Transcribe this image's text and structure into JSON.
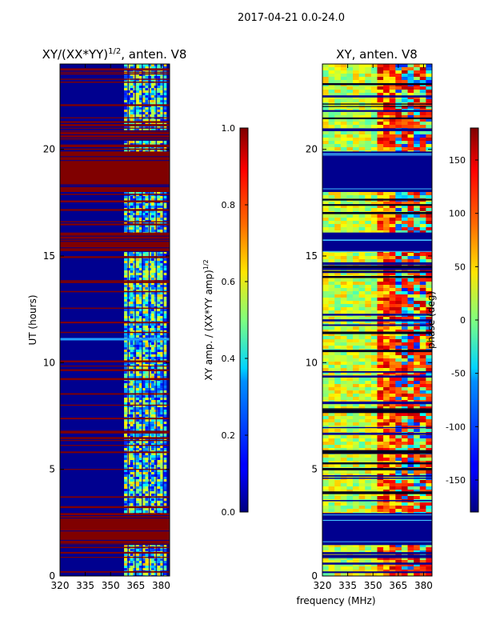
{
  "figure": {
    "suptitle": "2017-04-21 0.0-24.0",
    "xlabel": "frequency (MHz)"
  },
  "chart_data": [
    {
      "type": "heatmap",
      "title_main": "XY/(XX*YY)",
      "title_sup": "1/2",
      "title_tail": ", anten. V8",
      "ylabel": "UT (hours)",
      "xlim": [
        320,
        385
      ],
      "ylim": [
        0,
        24
      ],
      "xticks": [
        320,
        335,
        350,
        365,
        380
      ],
      "yticks": [
        0,
        5,
        10,
        15,
        20
      ],
      "colorbar": {
        "label_main": "XY amp. / (XX*YY amp)",
        "label_sup": "1/2",
        "range": [
          0.0,
          1.0
        ],
        "ticks": [
          "0.0",
          "0.2",
          "0.4",
          "0.6",
          "0.8",
          "1.0"
        ]
      },
      "saturated_bands_hours": [
        [
          1.45,
          2.95
        ],
        [
          15.2,
          16.1
        ],
        [
          18.0,
          19.9
        ],
        [
          20.4,
          20.9
        ]
      ],
      "active_band_mhz": [
        358,
        383
      ],
      "flare_hour": 11.1
    },
    {
      "type": "heatmap",
      "title": "XY, anten. V8",
      "ylabel": "",
      "xlim": [
        320,
        385
      ],
      "ylim": [
        0,
        24
      ],
      "xticks": [
        320,
        335,
        350,
        365,
        380
      ],
      "yticks": [
        0,
        5,
        10,
        15,
        20
      ],
      "colorbar": {
        "label": "phase (deg)",
        "range": [
          -180,
          180
        ],
        "ticks": [
          "-150",
          "-100",
          "-50",
          "0",
          "50",
          "100",
          "150"
        ]
      },
      "blank_bands_hours": [
        [
          1.45,
          2.95
        ],
        [
          15.2,
          16.1
        ],
        [
          18.0,
          19.9
        ]
      ]
    }
  ]
}
